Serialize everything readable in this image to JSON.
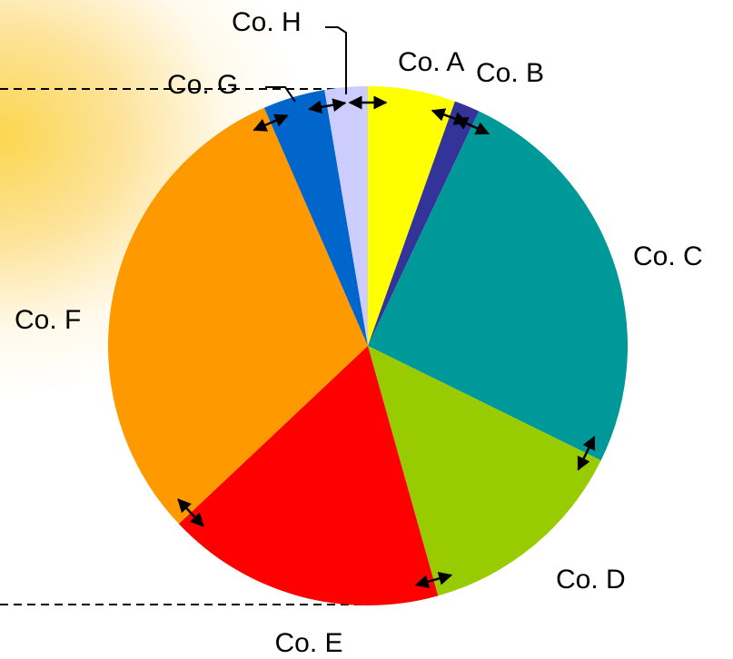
{
  "chart_data": {
    "type": "pie",
    "title": "",
    "categories": [
      "Co. A",
      "Co. B",
      "Co. C",
      "Co. D",
      "Co. E",
      "Co. F",
      "Co. G",
      "Co. H"
    ],
    "values": [
      5.5,
      1.6,
      25.5,
      13.5,
      17.5,
      30.8,
      3.9,
      2.7
    ],
    "unit": "percent share (estimated from slice angles)",
    "colors": [
      "#ffff00",
      "#333399",
      "#009999",
      "#99cc00",
      "#ff0000",
      "#ff9900",
      "#0066cc",
      "#ccccff"
    ],
    "start": "12 o'clock, clockwise",
    "annotations": "double-headed arrows span each slice boundary; dashed guide lines on the left"
  }
}
